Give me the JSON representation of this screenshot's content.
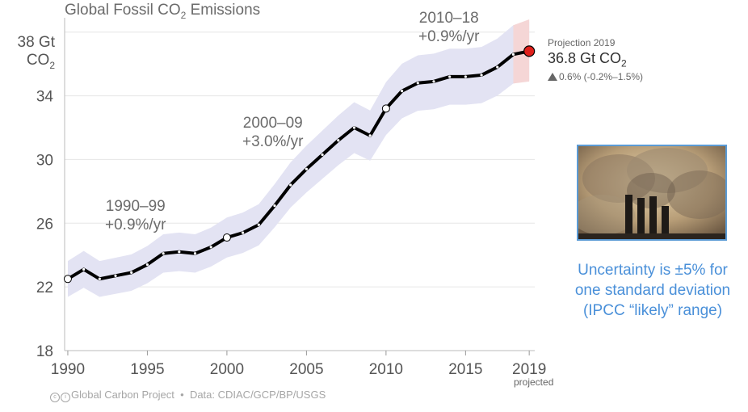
{
  "title_prefix": "Global Fossil CO",
  "title_sub": "2",
  "title_suffix": " Emissions",
  "y_unit_line1": "38 Gt",
  "y_unit_line2_prefix": "CO",
  "y_unit_line2_sub": "2",
  "annotations": {
    "p1990_line1": "1990–99",
    "p1990_line2": "+0.9%/yr",
    "p2000_line1": "2000–09",
    "p2000_line2": "+3.0%/yr",
    "p2010_line1": "2010–18",
    "p2010_line2": "+0.9%/yr"
  },
  "projection": {
    "label": "Projection 2019",
    "value_prefix": "36.8 Gt CO",
    "value_sub": "2",
    "change": "0.6% (-0.2%–1.5%)"
  },
  "projected_label": "projected",
  "footer": {
    "credit": "Global Carbon Project",
    "separator": "•",
    "data": "Data: CDIAC/GCP/BP/USGS"
  },
  "uncertainty_text": [
    "Uncertainty is ±5% for",
    "one standard deviation",
    "(IPCC “likely” range)"
  ],
  "colors": {
    "line": "#000000",
    "band": "#e3e3f3",
    "projection_band": "#f5d6d6",
    "projection_dot": "#e0201c",
    "grid": "#e6e6e6",
    "uncertainty_text": "#4a90d9"
  },
  "chart_data": {
    "type": "line",
    "title": "Global Fossil CO2 Emissions",
    "ylabel": "Gt CO2",
    "xlabel": "",
    "ylim": [
      18,
      39
    ],
    "xlim": [
      1989.8,
      2019.5
    ],
    "y_ticks": [
      18,
      22,
      26,
      30,
      34
    ],
    "y_tick_labels": [
      "18",
      "22",
      "26",
      "30",
      "34"
    ],
    "x_ticks": [
      1990,
      1995,
      2000,
      2005,
      2010,
      2015,
      2019
    ],
    "x_tick_labels": [
      "1990",
      "1995",
      "2000",
      "2005",
      "2010",
      "2015",
      "2019"
    ],
    "grid": true,
    "series": [
      {
        "name": "Fossil CO2 emissions",
        "x": [
          1990,
          1991,
          1992,
          1993,
          1994,
          1995,
          1996,
          1997,
          1998,
          1999,
          2000,
          2001,
          2002,
          2003,
          2004,
          2005,
          2006,
          2007,
          2008,
          2009,
          2010,
          2011,
          2012,
          2013,
          2014,
          2015,
          2016,
          2017,
          2018
        ],
        "values": [
          22.5,
          23.1,
          22.5,
          22.7,
          22.9,
          23.4,
          24.1,
          24.2,
          24.1,
          24.5,
          25.1,
          25.4,
          25.9,
          27.1,
          28.4,
          29.4,
          30.3,
          31.2,
          32.0,
          31.5,
          33.2,
          34.3,
          34.8,
          34.9,
          35.2,
          35.2,
          35.3,
          35.8,
          36.6
        ]
      }
    ],
    "highlighted_points": [
      1990,
      2000,
      2010
    ],
    "uncertainty": "±5%",
    "projection": {
      "x": 2019,
      "value": 36.8,
      "range_low": 34.9,
      "range_high": 38.8
    }
  }
}
